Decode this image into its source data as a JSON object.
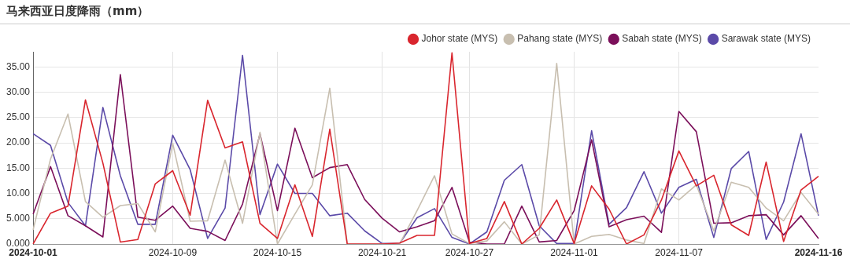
{
  "chart_data": {
    "type": "line",
    "title": "马来西亚日度降雨（mm）",
    "categories": [
      "2024-10-01",
      null,
      null,
      null,
      null,
      null,
      null,
      null,
      "2024-10-09",
      null,
      null,
      null,
      null,
      null,
      "2024-10-15",
      null,
      null,
      null,
      null,
      null,
      "2024-10-21",
      null,
      null,
      null,
      null,
      "2024-10-27",
      null,
      null,
      null,
      null,
      null,
      "2024-11-01",
      null,
      null,
      null,
      null,
      null,
      "2024-11-07",
      null,
      null,
      null,
      null,
      null,
      null,
      null,
      "2024-11-16"
    ],
    "series": [
      {
        "name": "Johor state (MYS)",
        "color": "#d9262e",
        "values": [
          0.0,
          6.1,
          7.5,
          28.5,
          16.0,
          0.4,
          0.9,
          11.9,
          14.5,
          5.7,
          28.4,
          19.0,
          20.2,
          4.1,
          1.1,
          11.7,
          1.5,
          22.7,
          0,
          0,
          0,
          0.2,
          1.7,
          1.7,
          37.8,
          0.1,
          1.1,
          8.4,
          0,
          3.1,
          8.7,
          0.1,
          11.5,
          6.9,
          0,
          1.8,
          8.7,
          18.4,
          11.5,
          13.6,
          3.8,
          1.7,
          16.2,
          0.5,
          10.7,
          13.4
        ]
      },
      {
        "name": "Pahang state (MYS)",
        "color": "#c8bfb0",
        "values": [
          2.8,
          16.8,
          25.7,
          8.4,
          5.3,
          7.6,
          8.0,
          2.4,
          19.9,
          4.5,
          4.6,
          16.6,
          4.1,
          22.1,
          0,
          5.9,
          11.7,
          30.8,
          0,
          0,
          0,
          0,
          6.6,
          13.5,
          2.0,
          0.1,
          0.6,
          4.4,
          0,
          1.8,
          35.7,
          0,
          1.5,
          1.9,
          0.8,
          0.1,
          10.9,
          8.7,
          11.7,
          2.6,
          12.2,
          11.2,
          7.1,
          4.6,
          10.2,
          5.9
        ]
      },
      {
        "name": "Sabah state (MYS)",
        "color": "#7b0f5a",
        "values": [
          5.9,
          15.3,
          5.6,
          3.6,
          1.4,
          33.5,
          5.3,
          4.7,
          7.5,
          3.1,
          2.5,
          0.7,
          7.9,
          21.8,
          6.6,
          22.9,
          13.1,
          15.1,
          15.7,
          8.8,
          5.1,
          2.4,
          3.4,
          4.6,
          11.2,
          0.4,
          0,
          0,
          7.5,
          0.4,
          0.7,
          6.6,
          20.6,
          3.4,
          4.8,
          5.5,
          2.3,
          26.2,
          22.2,
          4.1,
          4.2,
          5.6,
          5.8,
          1.8,
          5.6,
          1.1
        ]
      },
      {
        "name": "Sarawak state (MYS)",
        "color": "#5b4aa8",
        "values": [
          21.8,
          19.5,
          8.2,
          3.6,
          27.0,
          13.5,
          3.9,
          3.9,
          21.5,
          14.7,
          1.1,
          7.1,
          37.3,
          5.8,
          15.8,
          10.0,
          10.0,
          5.6,
          6.1,
          2.6,
          0.1,
          0.1,
          5.2,
          7.0,
          1.3,
          0.0,
          2.4,
          12.6,
          15.7,
          3.6,
          0.1,
          0.1,
          22.4,
          3.9,
          7.2,
          14.3,
          6.1,
          11.2,
          12.8,
          1.3,
          14.9,
          18.3,
          0.9,
          8.3,
          21.8,
          5.6
        ]
      }
    ],
    "ylim": [
      0,
      38
    ],
    "yticks": [
      {
        "value": 0,
        "label": "0.000"
      },
      {
        "value": 5,
        "label": "5.000"
      },
      {
        "value": 10,
        "label": "10.00"
      },
      {
        "value": 15,
        "label": "15.00"
      },
      {
        "value": 20,
        "label": "20.00"
      },
      {
        "value": 25,
        "label": "25.00"
      },
      {
        "value": 30,
        "label": "30.00"
      },
      {
        "value": 35,
        "label": "35.00"
      }
    ],
    "grid": true,
    "legend": "top right",
    "marker": "none",
    "line_style": "solid"
  }
}
